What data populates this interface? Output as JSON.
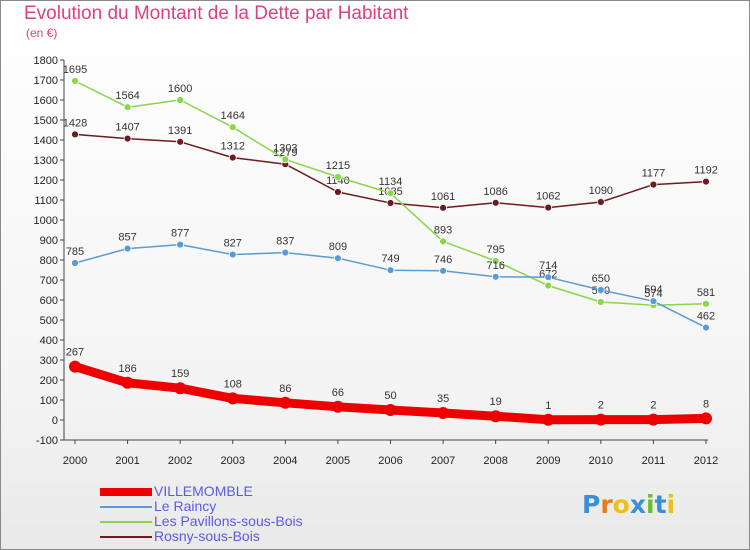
{
  "title": "Evolution du Montant de la Dette par Habitant",
  "subtitle": "(en €)",
  "logo_text": "Proxiti",
  "chart_data": {
    "type": "line",
    "x": [
      "2000",
      "2001",
      "2002",
      "2003",
      "2004",
      "2005",
      "2006",
      "2007",
      "2008",
      "2009",
      "2010",
      "2011",
      "2012"
    ],
    "ylim": [
      -100,
      1800
    ],
    "yticks": [
      -100,
      0,
      100,
      200,
      300,
      400,
      500,
      600,
      700,
      800,
      900,
      1000,
      1100,
      1200,
      1300,
      1400,
      1500,
      1600,
      1700,
      1800
    ],
    "grid": false,
    "legend_position": "bottom-left",
    "series": [
      {
        "name": "Rosny-sous-Bois",
        "color": "#6e1a1f",
        "values": [
          1428,
          1407,
          1391,
          1312,
          1279,
          1140,
          1085,
          1061,
          1086,
          1062,
          1090,
          1177,
          1192
        ]
      },
      {
        "name": "Les Pavillons-sous-Bois",
        "color": "#88d64a",
        "values": [
          1695,
          1564,
          1600,
          1464,
          1303,
          1215,
          1134,
          893,
          795,
          672,
          590,
          574,
          581
        ]
      },
      {
        "name": "Le Raincy",
        "color": "#5b9bd5",
        "values": [
          785,
          857,
          877,
          827,
          837,
          809,
          749,
          746,
          716,
          714,
          650,
          594,
          462
        ]
      },
      {
        "name": "VILLEMOMBLE",
        "color": "#ee0000",
        "values": [
          267,
          186,
          159,
          108,
          86,
          66,
          50,
          35,
          19,
          1,
          2,
          2,
          8
        ]
      }
    ],
    "legend_order": [
      "VILLEMOMBLE",
      "Le Raincy",
      "Les Pavillons-sous-Bois",
      "Rosny-sous-Bois"
    ]
  },
  "logo_colors": [
    "#3a8fd8",
    "#e87a1a",
    "#e8c21a",
    "#3a8fd8",
    "#6abf2e",
    "#3a8fd8",
    "#e8c21a"
  ]
}
